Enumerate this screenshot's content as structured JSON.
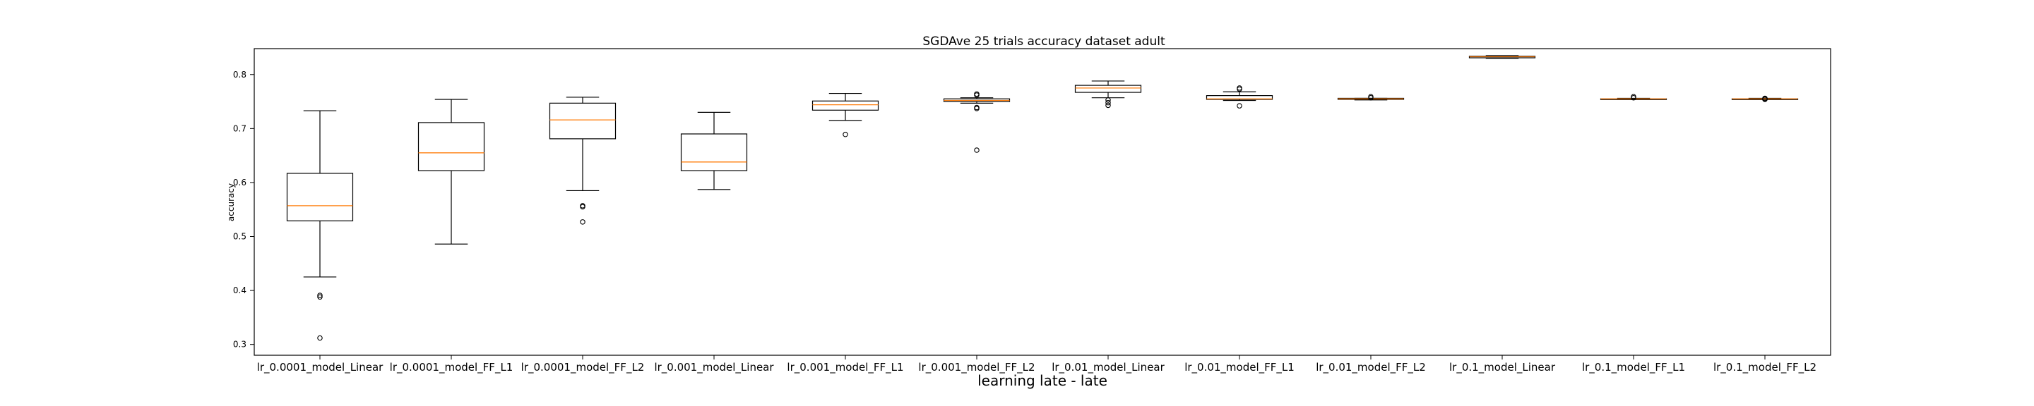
{
  "chart_data": {
    "type": "box",
    "title": "SGDAve 25 trials accuracy dataset adult",
    "xlabel": "learning late - late",
    "ylabel": "accuracy",
    "ylim": [
      0.28,
      0.848
    ],
    "yticks": [
      0.3,
      0.4,
      0.5,
      0.6,
      0.7,
      0.8
    ],
    "grid": false,
    "colors": {
      "box": "#000000",
      "median": "#ff7f0e",
      "flier": "#000000"
    },
    "categories": [
      "lr_0.0001_model_Linear",
      "lr_0.0001_model_FF_L1",
      "lr_0.0001_model_FF_L2",
      "lr_0.001_model_Linear",
      "lr_0.001_model_FF_L1",
      "lr_0.001_model_FF_L2",
      "lr_0.01_model_Linear",
      "lr_0.01_model_FF_L1",
      "lr_0.01_model_FF_L2",
      "lr_0.1_model_Linear",
      "lr_0.1_model_FF_L1",
      "lr_0.1_model_FF_L2"
    ],
    "boxes": [
      {
        "whislo": 0.425,
        "q1": 0.529,
        "med": 0.557,
        "q3": 0.617,
        "whishi": 0.733,
        "fliers": [
          0.391,
          0.388,
          0.312
        ]
      },
      {
        "whislo": 0.486,
        "q1": 0.622,
        "med": 0.655,
        "q3": 0.711,
        "whishi": 0.754,
        "fliers": []
      },
      {
        "whislo": 0.585,
        "q1": 0.681,
        "med": 0.716,
        "q3": 0.747,
        "whishi": 0.758,
        "fliers": [
          0.557,
          0.555,
          0.527
        ]
      },
      {
        "whislo": 0.587,
        "q1": 0.622,
        "med": 0.638,
        "q3": 0.69,
        "whishi": 0.73,
        "fliers": []
      },
      {
        "whislo": 0.715,
        "q1": 0.734,
        "med": 0.744,
        "q3": 0.751,
        "whishi": 0.765,
        "fliers": [
          0.689
        ]
      },
      {
        "whislo": 0.747,
        "q1": 0.75,
        "med": 0.752,
        "q3": 0.755,
        "whishi": 0.757,
        "fliers": [
          0.764,
          0.762,
          0.739,
          0.737,
          0.66
        ]
      },
      {
        "whislo": 0.757,
        "q1": 0.767,
        "med": 0.775,
        "q3": 0.78,
        "whishi": 0.788,
        "fliers": [
          0.753,
          0.748,
          0.743
        ]
      },
      {
        "whislo": 0.752,
        "q1": 0.754,
        "med": 0.755,
        "q3": 0.761,
        "whishi": 0.768,
        "fliers": [
          0.775,
          0.773,
          0.742
        ]
      },
      {
        "whislo": 0.753,
        "q1": 0.754,
        "med": 0.755,
        "q3": 0.756,
        "whishi": 0.756,
        "fliers": [
          0.759,
          0.757
        ]
      },
      {
        "whislo": 0.83,
        "q1": 0.831,
        "med": 0.833,
        "q3": 0.834,
        "whishi": 0.835,
        "fliers": []
      },
      {
        "whislo": 0.754,
        "q1": 0.755,
        "med": 0.755,
        "q3": 0.755,
        "whishi": 0.756,
        "fliers": [
          0.759,
          0.757
        ]
      },
      {
        "whislo": 0.754,
        "q1": 0.755,
        "med": 0.755,
        "q3": 0.755,
        "whishi": 0.756,
        "fliers": [
          0.756,
          0.755,
          0.754
        ]
      }
    ]
  }
}
